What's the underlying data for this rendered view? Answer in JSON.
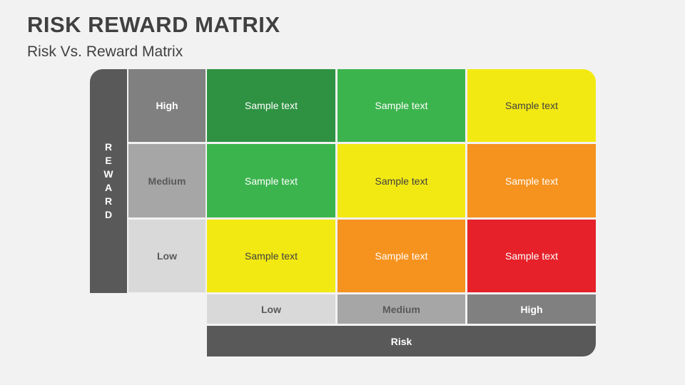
{
  "slide": {
    "title": "RISK REWARD MATRIX",
    "subtitle": "Risk Vs. Reward Matrix"
  },
  "colors": {
    "background": "#F2F2F2",
    "title_text": "#404040",
    "axis_dark_gray": "#595959",
    "high_gray": "#808080",
    "medium_gray": "#A6A6A6",
    "low_gray": "#D9D9D9",
    "dark_green": "#2E9242",
    "green": "#3CB44E",
    "yellow": "#F3E912",
    "orange": "#F6921E",
    "red": "#E62129",
    "white": "#FFFFFF",
    "dark_text": "#404040",
    "gray_label_text": "#595959"
  },
  "matrix": {
    "y_axis": {
      "label": "REWARD",
      "letters": [
        "R",
        "E",
        "W",
        "A",
        "R",
        "D"
      ],
      "bg": "#595959",
      "text_color": "#FFFFFF"
    },
    "x_axis": {
      "label": "Risk",
      "bg": "#595959",
      "text_color": "#FFFFFF"
    },
    "row_labels": [
      {
        "label": "High",
        "bg": "#808080",
        "text_color": "#FFFFFF"
      },
      {
        "label": "Medium",
        "bg": "#A6A6A6",
        "text_color": "#595959"
      },
      {
        "label": "Low",
        "bg": "#D9D9D9",
        "text_color": "#595959"
      }
    ],
    "col_labels": [
      {
        "label": "Low",
        "bg": "#D9D9D9",
        "text_color": "#595959"
      },
      {
        "label": "Medium",
        "bg": "#A6A6A6",
        "text_color": "#595959"
      },
      {
        "label": "High",
        "bg": "#808080",
        "text_color": "#FFFFFF"
      }
    ],
    "rows": [
      {
        "cells": [
          {
            "text": "Sample text",
            "bg": "#2E9242",
            "text_color": "#FFFFFF"
          },
          {
            "text": "Sample text",
            "bg": "#3CB44E",
            "text_color": "#FFFFFF"
          },
          {
            "text": "Sample text",
            "bg": "#F3E912",
            "text_color": "#404040"
          }
        ]
      },
      {
        "cells": [
          {
            "text": "Sample text",
            "bg": "#3CB44E",
            "text_color": "#FFFFFF"
          },
          {
            "text": "Sample text",
            "bg": "#F3E912",
            "text_color": "#404040"
          },
          {
            "text": "Sample text",
            "bg": "#F6921E",
            "text_color": "#FFFFFF"
          }
        ]
      },
      {
        "cells": [
          {
            "text": "Sample text",
            "bg": "#F3E912",
            "text_color": "#404040"
          },
          {
            "text": "Sample text",
            "bg": "#F6921E",
            "text_color": "#FFFFFF"
          },
          {
            "text": "Sample text",
            "bg": "#E62129",
            "text_color": "#FFFFFF"
          }
        ]
      }
    ]
  }
}
